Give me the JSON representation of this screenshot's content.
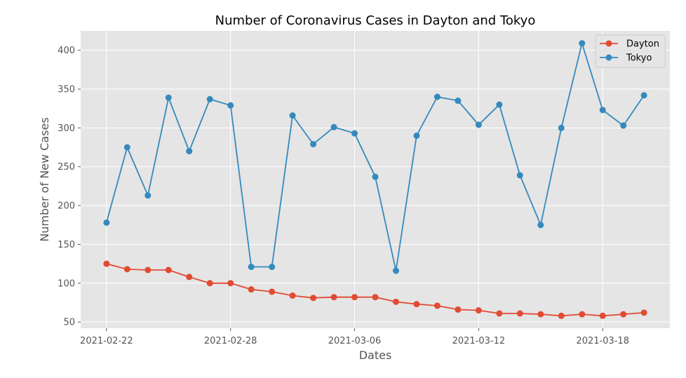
{
  "chart_data": {
    "type": "line",
    "title": "Number of Coronavirus Cases in Dayton and Tokyo",
    "xlabel": "Dates",
    "ylabel": "Number of New Cases",
    "dates": [
      "2021-02-22",
      "2021-02-23",
      "2021-02-24",
      "2021-02-25",
      "2021-02-26",
      "2021-02-27",
      "2021-02-28",
      "2021-03-01",
      "2021-03-02",
      "2021-03-03",
      "2021-03-04",
      "2021-03-05",
      "2021-03-06",
      "2021-03-07",
      "2021-03-08",
      "2021-03-09",
      "2021-03-10",
      "2021-03-11",
      "2021-03-12",
      "2021-03-13",
      "2021-03-14",
      "2021-03-15",
      "2021-03-16",
      "2021-03-17",
      "2021-03-18",
      "2021-03-19",
      "2021-03-20"
    ],
    "xticks": [
      "2021-02-22",
      "2021-02-28",
      "2021-03-06",
      "2021-03-12",
      "2021-03-18"
    ],
    "yticks": [
      50,
      100,
      150,
      200,
      250,
      300,
      350,
      400
    ],
    "xlim": [
      "2021-02-20T18:00",
      "2021-03-21T06:00"
    ],
    "ylim": [
      42,
      425
    ],
    "grid": true,
    "legend_position": "top-right",
    "series": [
      {
        "name": "Dayton",
        "color": "#E24A33",
        "values": [
          125,
          118,
          117,
          117,
          108,
          100,
          100,
          92,
          89,
          84,
          81,
          82,
          82,
          82,
          76,
          73,
          71,
          66,
          65,
          61,
          61,
          60,
          58,
          60,
          58,
          60,
          62
        ]
      },
      {
        "name": "Tokyo",
        "color": "#348ABD",
        "values": [
          178,
          275,
          213,
          339,
          270,
          337,
          329,
          121,
          121,
          316,
          279,
          301,
          293,
          237,
          116,
          290,
          340,
          335,
          304,
          330,
          239,
          175,
          300,
          409,
          323,
          303,
          342
        ]
      }
    ]
  }
}
